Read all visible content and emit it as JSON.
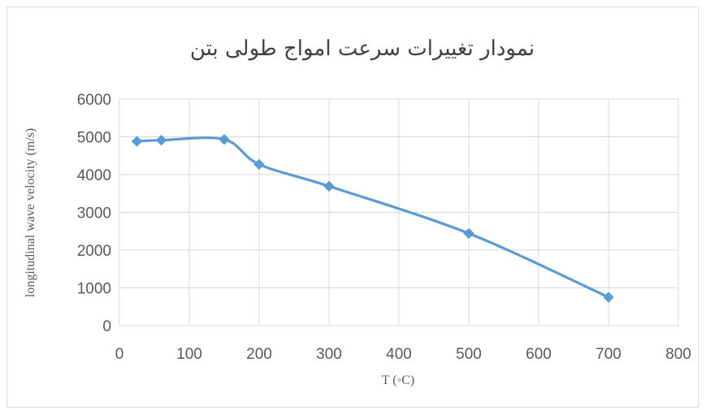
{
  "chart_data": {
    "type": "line",
    "title": "نمودار تغییرات سرعت امواج طولی بتن",
    "xlabel": "T (◦C)",
    "ylabel": "longitudinal wave velocity (m/s)",
    "xlim": [
      0,
      800
    ],
    "ylim": [
      0,
      6000
    ],
    "x_ticks": [
      "0",
      "100",
      "200",
      "300",
      "400",
      "500",
      "600",
      "700",
      "800"
    ],
    "y_ticks": [
      "0",
      "1000",
      "2000",
      "3000",
      "4000",
      "5000",
      "6000"
    ],
    "grid": true,
    "smooth": true,
    "marker": "diamond",
    "series_color": "#5b9bd5",
    "grid_color": "#d9d9d9",
    "series": [
      {
        "x": [
          25,
          60,
          150,
          200,
          300,
          500,
          700
        ],
        "values": [
          4880,
          4910,
          4930,
          4270,
          3690,
          2440,
          750
        ]
      }
    ]
  }
}
